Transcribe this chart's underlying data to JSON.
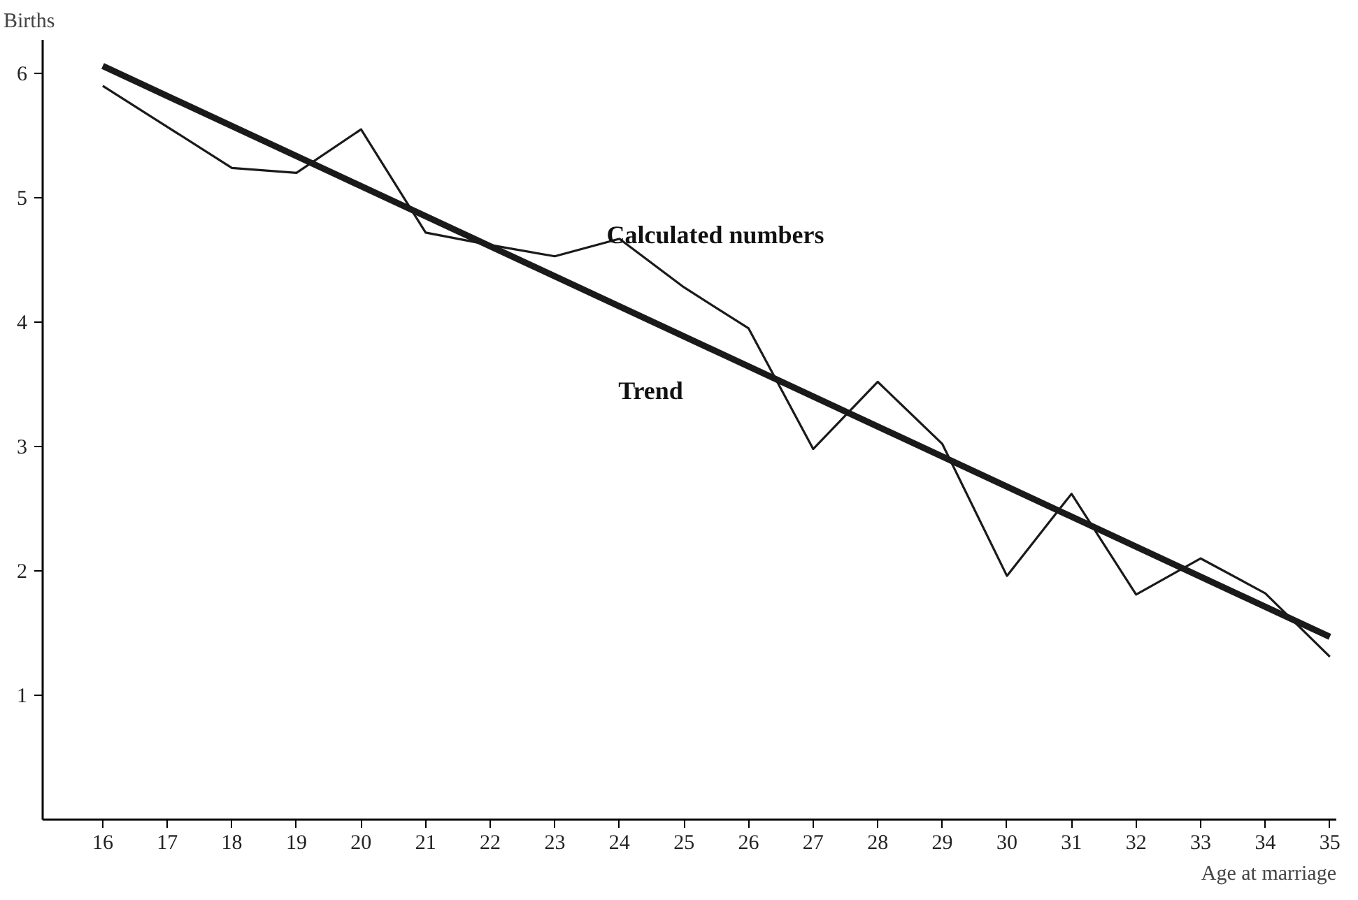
{
  "chart_data": {
    "type": "line",
    "xlabel": "Age at marriage",
    "ylabel": "Births",
    "x": [
      16,
      17,
      18,
      19,
      20,
      21,
      22,
      23,
      24,
      25,
      26,
      27,
      28,
      29,
      30,
      31,
      32,
      33,
      34,
      35
    ],
    "series": [
      {
        "color": "#1a1a1a",
        "values": [
          5.9,
          5.57,
          5.24,
          5.2,
          5.55,
          4.72,
          4.62,
          4.53,
          4.67,
          4.28,
          3.95,
          2.98,
          3.52,
          3.02,
          1.96,
          2.62,
          1.81,
          2.1,
          1.82,
          1.31
        ]
      },
      {
        "color": "#1a1a1a",
        "x": [
          16,
          35
        ],
        "values": [
          6.06,
          1.47
        ]
      }
    ],
    "annotations": [
      "Calculated numbers",
      "Trend"
    ],
    "xlim": [
      15.07,
      35.1
    ],
    "ylim": [
      0,
      6.27
    ],
    "xticks": [
      16,
      17,
      18,
      19,
      20,
      21,
      22,
      23,
      24,
      25,
      26,
      27,
      28,
      29,
      30,
      31,
      32,
      33,
      34,
      35
    ],
    "yticks": [
      1,
      2,
      3,
      4,
      5,
      6
    ],
    "grid": false
  }
}
